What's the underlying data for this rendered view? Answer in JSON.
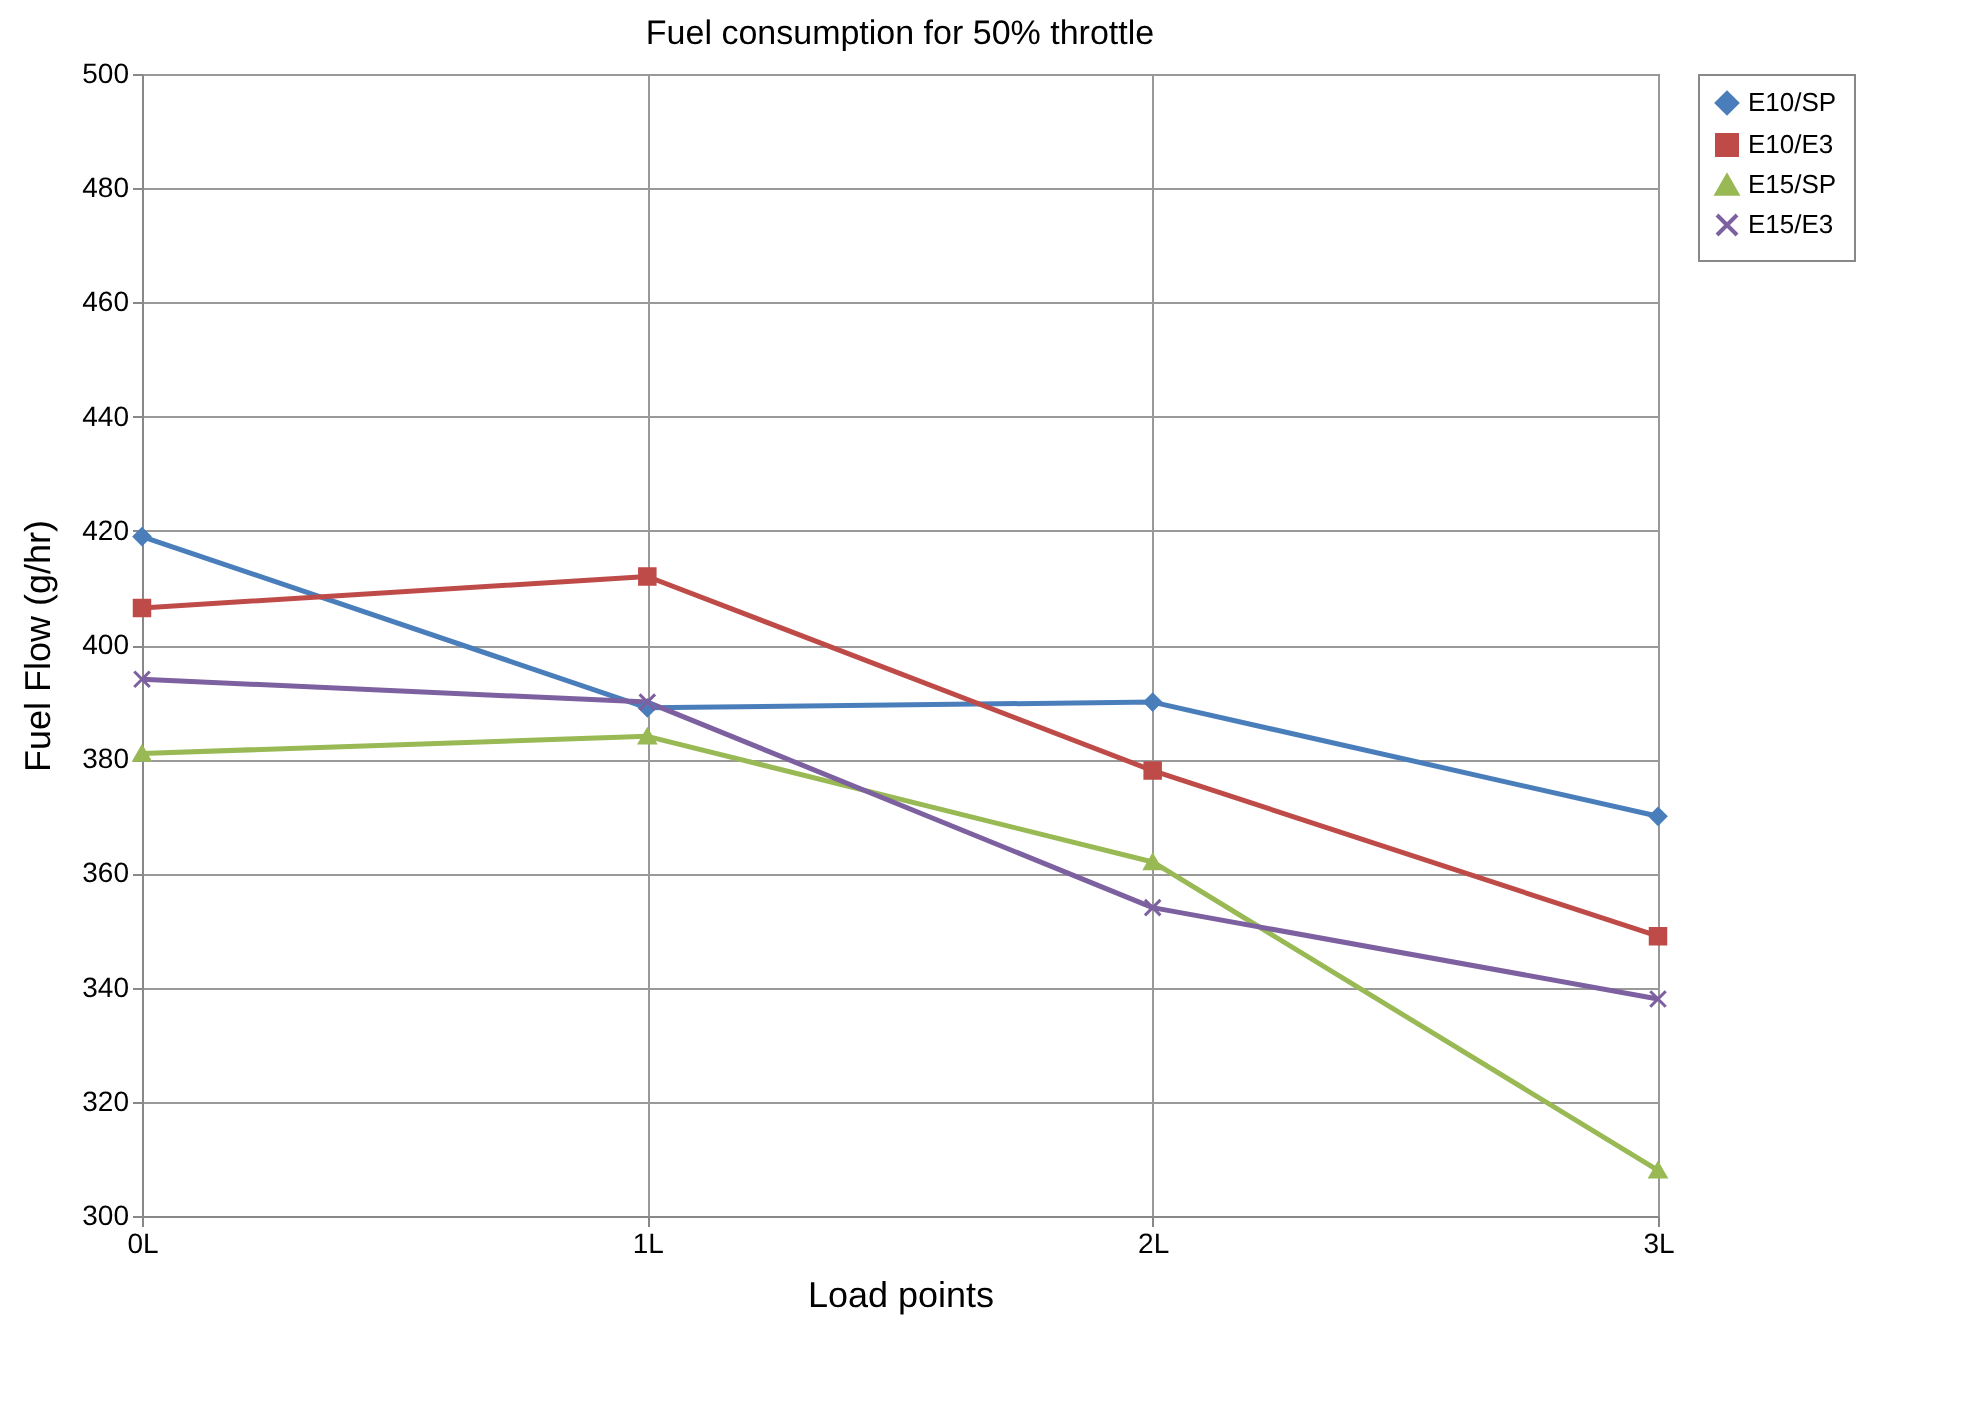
{
  "chart_data": {
    "type": "line",
    "title": "Fuel consumption for 50% throttle",
    "xlabel": "Load points",
    "ylabel": "Fuel Flow (g/hr)",
    "categories": [
      "0L",
      "1L",
      "2L",
      "3L"
    ],
    "series": [
      {
        "name": "E10/SP",
        "color": "#4a7ebb",
        "marker": "diamond",
        "values": [
          419,
          389,
          390,
          370
        ]
      },
      {
        "name": "E10/E3",
        "color": "#be4b48",
        "marker": "square",
        "values": [
          406.5,
          412,
          378,
          349
        ]
      },
      {
        "name": "E15/SP",
        "color": "#98b954",
        "marker": "triangle",
        "values": [
          381,
          384,
          362,
          308
        ]
      },
      {
        "name": "E15/E3",
        "color": "#7d60a0",
        "marker": "cross",
        "values": [
          394,
          390,
          354,
          338
        ]
      }
    ],
    "ylim": [
      300,
      500
    ],
    "yticks": [
      300,
      320,
      340,
      360,
      380,
      400,
      420,
      440,
      460,
      480,
      500
    ],
    "grid": true,
    "legend": "right",
    "line_style": "solid"
  }
}
